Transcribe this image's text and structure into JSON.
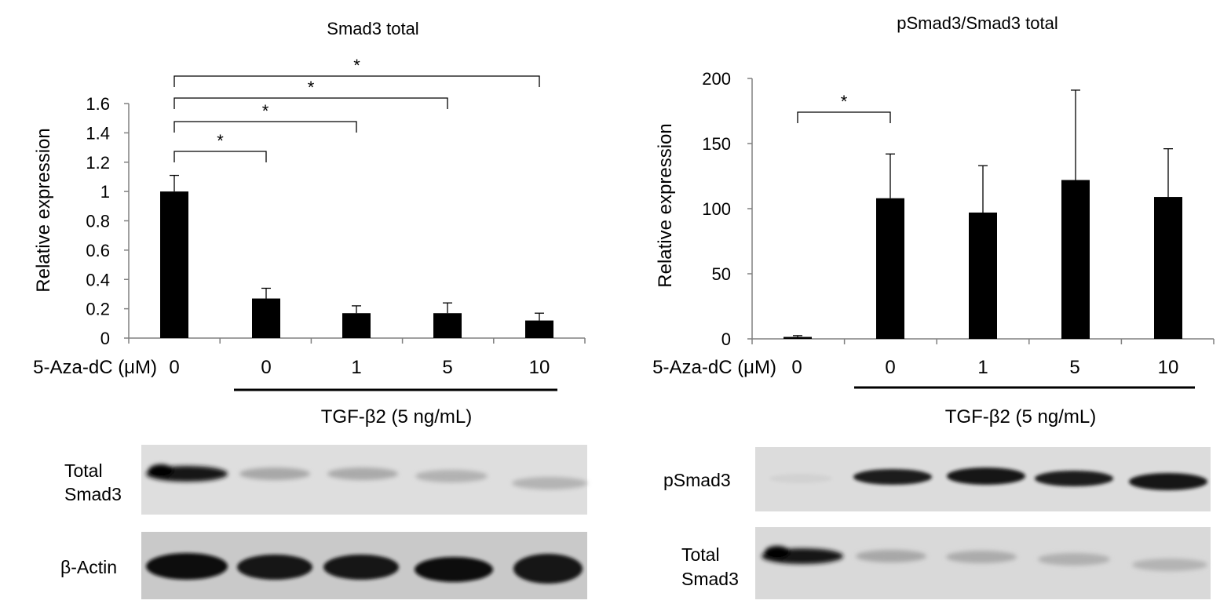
{
  "charts": [
    {
      "id": "left",
      "title": "Smad3 total",
      "ylabel": "Relative expression",
      "y_ticks": [
        "0",
        "0.2",
        "0.4",
        "0.6",
        "0.8",
        "1",
        "1.2",
        "1.4",
        "1.6"
      ],
      "x_prefix": "5-Aza-dC (μM)",
      "x_labels": [
        "0",
        "0",
        "1",
        "5",
        "10"
      ],
      "treatment_label": "TGF-β2 (5 ng/mL)",
      "sig_mark": "*",
      "blot_labels": [
        [
          "Total",
          "Smad3"
        ],
        [
          "β-Actin"
        ]
      ]
    },
    {
      "id": "right",
      "title": "pSmad3/Smad3 total",
      "ylabel": "Relative expression",
      "y_ticks": [
        "0",
        "50",
        "100",
        "150",
        "200"
      ],
      "x_prefix": "5-Aza-dC (μM)",
      "x_labels": [
        "0",
        "0",
        "1",
        "5",
        "10"
      ],
      "treatment_label": "TGF-β2 (5 ng/mL)",
      "sig_mark": "*",
      "blot_labels": [
        [
          "pSmad3"
        ],
        [
          "Total",
          "Smad3"
        ]
      ]
    }
  ],
  "chart_data": [
    {
      "type": "bar",
      "title": "Smad3 total",
      "ylabel": "Relative expression",
      "xlabel": "5-Aza-dC (μM)",
      "categories": [
        "0",
        "0",
        "1",
        "5",
        "10"
      ],
      "values": [
        1.0,
        0.27,
        0.17,
        0.17,
        0.12
      ],
      "errors": [
        0.11,
        0.07,
        0.05,
        0.07,
        0.05
      ],
      "ylim": [
        0,
        1.6
      ],
      "significance": [
        [
          0,
          1
        ],
        [
          0,
          2
        ],
        [
          0,
          3
        ],
        [
          0,
          4
        ]
      ],
      "bar_color": "#000000"
    },
    {
      "type": "bar",
      "title": "pSmad3/Smad3 total",
      "ylabel": "Relative expression",
      "xlabel": "5-Aza-dC (μM)",
      "categories": [
        "0",
        "0",
        "1",
        "5",
        "10"
      ],
      "values": [
        1.5,
        108,
        97,
        122,
        109
      ],
      "errors": [
        1,
        34,
        36,
        69,
        37
      ],
      "ylim": [
        0,
        200
      ],
      "significance": [
        [
          0,
          1
        ]
      ],
      "bar_color": "#000000"
    }
  ]
}
